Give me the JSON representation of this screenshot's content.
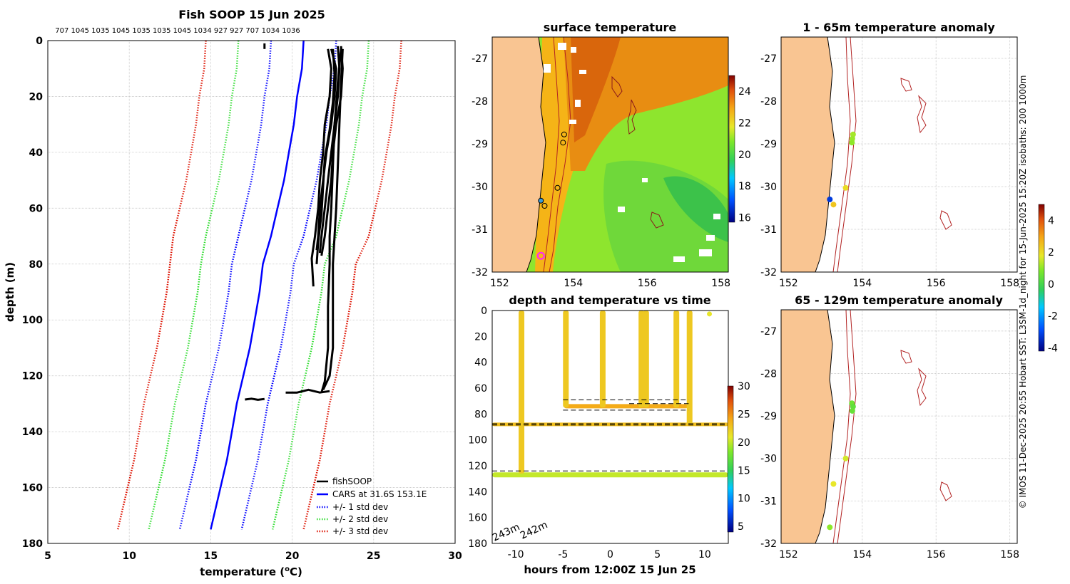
{
  "figure": {
    "credit": "© IMOS 11-Dec-2025 20:55 Hobart SST: L3SM-1d_night for 15-Jun-2025 15:20Z isobaths: 200 1000m"
  },
  "colors": {
    "land": "#f9c592",
    "fishsoop": "#000000",
    "cars": "#0000ff",
    "std1": "#0000ff",
    "std2": "#33dd33",
    "std3": "#dd1100",
    "isobath": "#b22222",
    "coast": "#000000"
  },
  "chart_data": [
    {
      "id": "profile",
      "type": "line",
      "title": "Fish SOOP 15 Jun 2025",
      "top_labels": "707 1045 1035 1045 1035 1035 1045 1034 927 927 707 1034 1036",
      "xlabel": "temperature (",
      "xlabel_sup": "o",
      "xlabel_end": "C)",
      "ylabel": "depth (m)",
      "xlim": [
        5,
        30
      ],
      "ylim": [
        180,
        0
      ],
      "xticks": [
        5,
        10,
        15,
        20,
        25,
        30
      ],
      "yticks": [
        0,
        20,
        40,
        60,
        80,
        100,
        120,
        140,
        160,
        180
      ],
      "grid": true,
      "legend": {
        "position": "bottom-right",
        "entries": [
          "fishSOOP",
          "CARS at 31.6S 153.1E",
          "+/- 1 std dev",
          "+/- 2 std dev",
          "+/- 3 std dev"
        ]
      },
      "cars": {
        "name": "CARS at 31.6S 153.1E",
        "depth": [
          0,
          10,
          20,
          30,
          40,
          50,
          60,
          70,
          80,
          90,
          100,
          110,
          120,
          130,
          140,
          150,
          160,
          175
        ],
        "temp": [
          20.7,
          20.6,
          20.3,
          20.1,
          19.8,
          19.5,
          19.1,
          18.7,
          18.2,
          18.0,
          17.7,
          17.4,
          17.0,
          16.6,
          16.3,
          16.0,
          15.6,
          15.0
        ],
        "std_offsets": [
          2,
          4,
          6
        ]
      },
      "fishsoop": [
        {
          "depth": [
            3,
            10,
            20,
            30,
            40,
            50,
            60,
            70,
            78,
            88
          ],
          "temp": [
            22.2,
            22.4,
            22.3,
            22.0,
            21.9,
            21.7,
            21.6,
            21.4,
            21.2,
            21.3
          ]
        },
        {
          "depth": [
            3,
            12,
            22,
            32,
            42,
            52,
            62,
            72,
            80
          ],
          "temp": [
            22.5,
            22.6,
            22.5,
            22.3,
            22.0,
            21.9,
            21.8,
            21.6,
            21.5
          ]
        },
        {
          "depth": [
            2,
            10,
            20,
            30,
            40,
            50,
            60,
            70,
            76
          ],
          "temp": [
            22.8,
            22.9,
            22.8,
            22.6,
            22.4,
            22.2,
            22.0,
            21.8,
            21.7
          ]
        },
        {
          "depth": [
            2,
            10,
            20,
            30,
            40,
            50,
            60,
            70,
            77
          ],
          "temp": [
            23.0,
            23.1,
            23.0,
            22.7,
            22.5,
            22.4,
            22.2,
            22.0,
            21.8
          ]
        },
        {
          "depth": [
            3,
            10,
            20,
            30,
            40,
            50,
            60,
            70,
            75
          ],
          "temp": [
            22.4,
            22.7,
            22.6,
            22.4,
            22.1,
            21.9,
            21.7,
            21.6,
            21.5
          ]
        },
        {
          "depth": [
            3,
            15,
            30,
            45,
            60,
            70,
            80,
            95,
            110,
            120,
            125
          ],
          "temp": [
            23.1,
            23.0,
            22.9,
            22.8,
            22.7,
            22.6,
            22.5,
            22.5,
            22.5,
            22.3,
            21.9
          ]
        },
        {
          "depth": [
            3,
            15,
            30,
            45,
            60,
            70,
            80,
            95,
            110,
            122,
            126
          ],
          "temp": [
            23.0,
            22.8,
            22.6,
            22.5,
            22.4,
            22.3,
            22.3,
            22.2,
            22.2,
            22.0,
            21.8
          ]
        },
        {
          "depth": [
            126,
            126,
            125,
            126,
            125.5
          ],
          "temp": [
            19.6,
            20.3,
            21.0,
            21.7,
            22.3
          ]
        },
        {
          "depth": [
            128.5,
            128.2,
            128.6,
            128.3
          ],
          "temp": [
            17.1,
            17.5,
            17.9,
            18.3
          ]
        },
        {
          "depth": [
            1,
            3
          ],
          "temp": [
            18.3,
            18.3
          ]
        }
      ]
    },
    {
      "id": "sst_map",
      "type": "heatmap",
      "title": "surface temperature",
      "xlim": [
        151.8,
        158.2
      ],
      "ylim": [
        -32,
        -26.5
      ],
      "xticks": [
        152,
        154,
        156,
        158
      ],
      "yticks": [
        -27,
        -28,
        -29,
        -30,
        -31,
        -32
      ],
      "colorbar": {
        "ticks": [
          16,
          18,
          20,
          22,
          24
        ],
        "range": [
          15.7,
          25
        ]
      },
      "profile_markers": [
        {
          "lon": 153.75,
          "lat": -28.78
        },
        {
          "lon": 153.72,
          "lat": -28.97
        },
        {
          "lon": 153.57,
          "lat": -30.03
        },
        {
          "lon": 153.12,
          "lat": -30.33
        },
        {
          "lon": 153.22,
          "lat": -30.45
        },
        {
          "lon": 153.12,
          "lat": -31.62
        }
      ]
    },
    {
      "id": "time_section",
      "type": "scatter",
      "title": "depth and temperature vs time",
      "xlabel": "hours from 12:00Z 15 Jun 25",
      "xlim": [
        -12.5,
        12.5
      ],
      "ylim": [
        180,
        0
      ],
      "xticks": [
        -10,
        -5,
        0,
        5,
        10
      ],
      "yticks": [
        0,
        20,
        40,
        60,
        80,
        100,
        120,
        140,
        160,
        180
      ],
      "colorbar": {
        "ticks": [
          5,
          10,
          15,
          20,
          25,
          30
        ],
        "range": [
          4,
          30
        ]
      },
      "bottom_depth_labels": [
        "243m",
        "242m"
      ],
      "dashed_levels": [
        {
          "x0": -12.5,
          "x1": 12.5,
          "depth": 87.5
        },
        {
          "x0": -12.5,
          "x1": 12.5,
          "depth": 88.5
        },
        {
          "x0": -12.5,
          "x1": 12.5,
          "depth": 124
        },
        {
          "x0": -5,
          "x1": 8.3,
          "depth": 69
        },
        {
          "x0": -5,
          "x1": 8.3,
          "depth": 77
        },
        {
          "x0": 2,
          "x1": 8.3,
          "depth": 72
        }
      ],
      "casts": [
        -9.4,
        -4.7,
        -0.8,
        3.3,
        3.8,
        7.0,
        8.4
      ],
      "surface_point": {
        "hour": 10.5,
        "depth": 1,
        "temp": 21
      }
    },
    {
      "id": "anom_shallow",
      "type": "scatter",
      "title": "1 - 65m temperature anomaly",
      "xlim": [
        151.8,
        158.2
      ],
      "ylim": [
        -32,
        -26.5
      ],
      "xticks": [
        152,
        154,
        156,
        158
      ],
      "yticks": [
        -27,
        -28,
        -29,
        -30,
        -31,
        -32
      ],
      "points": [
        {
          "lon": 153.75,
          "lat": -28.78,
          "anom": 1.2
        },
        {
          "lon": 153.73,
          "lat": -28.88,
          "anom": 1.1
        },
        {
          "lon": 153.72,
          "lat": -28.97,
          "anom": 1.0
        },
        {
          "lon": 153.55,
          "lat": -30.03,
          "anom": 2.0
        },
        {
          "lon": 153.12,
          "lat": -30.3,
          "anom": -3.2
        },
        {
          "lon": 153.22,
          "lat": -30.42,
          "anom": 2.4
        }
      ]
    },
    {
      "id": "anom_deep",
      "type": "scatter",
      "title": "65 - 129m temperature anomaly",
      "xlim": [
        151.8,
        158.2
      ],
      "ylim": [
        -32,
        -26.5
      ],
      "xticks": [
        152,
        154,
        156,
        158
      ],
      "yticks": [
        -27,
        -28,
        -29,
        -30,
        -31,
        -32
      ],
      "colorbar": {
        "ticks": [
          -4,
          -2,
          0,
          2,
          4
        ],
        "range": [
          -4.2,
          5
        ]
      },
      "points": [
        {
          "lon": 153.72,
          "lat": -28.7,
          "anom": 0.6
        },
        {
          "lon": 153.75,
          "lat": -28.78,
          "anom": 0.4
        },
        {
          "lon": 153.73,
          "lat": -28.88,
          "anom": 0.5
        },
        {
          "lon": 153.55,
          "lat": -30.0,
          "anom": 1.6
        },
        {
          "lon": 153.22,
          "lat": -30.6,
          "anom": 1.8
        },
        {
          "lon": 153.12,
          "lat": -31.62,
          "anom": 1.0
        }
      ]
    }
  ]
}
